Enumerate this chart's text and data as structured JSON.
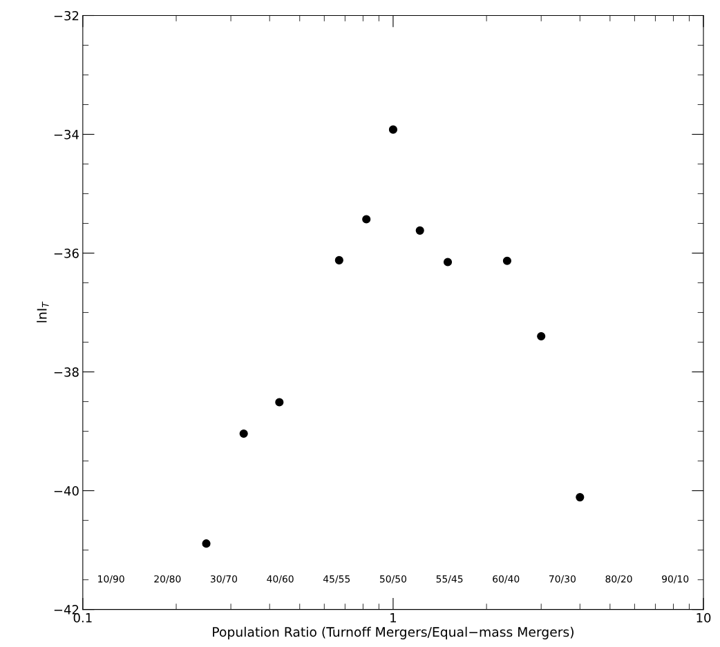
{
  "chart_data": {
    "type": "scatter",
    "xlabel": "Population Ratio (Turnoff Mergers/Equal−mass Mergers)",
    "ylabel": "lnI$_{T}$",
    "x": [
      0.25,
      0.33,
      0.43,
      0.67,
      0.82,
      1,
      1.22,
      1.5,
      2.33,
      3,
      4
    ],
    "series": [
      {
        "color": "#000000",
        "values": [
          -40.89,
          -39.04,
          -38.51,
          -36.12,
          -35.43,
          -33.92,
          -35.62,
          -36.15,
          -36.13,
          -37.4,
          -40.11
        ]
      }
    ],
    "marker": "circle",
    "log": "x",
    "xlim": [
      0.1,
      10
    ],
    "xticks": [
      0.1,
      1,
      10
    ],
    "ylim": [
      -42,
      -32
    ],
    "yticks": [
      -42,
      -40,
      -38,
      -36,
      -34,
      -32
    ],
    "grid": false,
    "legend": false,
    "annotations": [
      "10/90",
      "20/80",
      "30/70",
      "40/60",
      "45/55",
      "50/50",
      "55/45",
      "60/40",
      "70/30",
      "80/20",
      "90/10"
    ]
  }
}
